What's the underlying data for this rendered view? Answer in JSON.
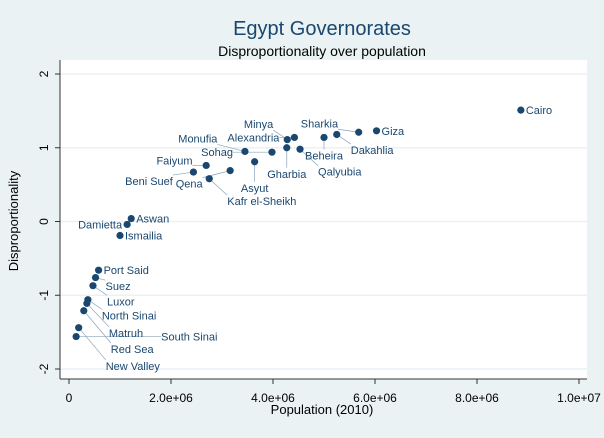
{
  "chart_data": {
    "type": "scatter",
    "title": "Egypt Governorates",
    "subtitle": "Disproportionality over population",
    "xlabel": "Population (2010)",
    "ylabel": "Disproportionality",
    "xlim": [
      0,
      10000000
    ],
    "ylim": [
      -2,
      2
    ],
    "xticks": [
      0,
      2000000,
      4000000,
      6000000,
      8000000,
      10000000
    ],
    "xtick_labels": [
      "0",
      "2.0e+06",
      "4.0e+06",
      "6.0e+06",
      "8.0e+06",
      "1.0e+07"
    ],
    "yticks": [
      2,
      1,
      0,
      -1,
      -2
    ],
    "ytick_labels": [
      "2",
      "1",
      "0",
      "-1",
      "-2"
    ],
    "grid": true,
    "marker_color": "#1a476f",
    "points": [
      {
        "label": "Cairo",
        "x": 8860000,
        "y": 1.51
      },
      {
        "label": "Giza",
        "x": 6030000,
        "y": 1.23
      },
      {
        "label": "Sharkia",
        "x": 5680000,
        "y": 1.21
      },
      {
        "label": "Dakahlia",
        "x": 5250000,
        "y": 1.18
      },
      {
        "label": "Beheira",
        "x": 5000000,
        "y": 1.14
      },
      {
        "label": "Alexandria",
        "x": 4420000,
        "y": 1.14
      },
      {
        "label": "Minya",
        "x": 4280000,
        "y": 1.11
      },
      {
        "label": "Qalyubia",
        "x": 4530000,
        "y": 0.98
      },
      {
        "label": "Gharbia",
        "x": 4270000,
        "y": 1.0
      },
      {
        "label": "Sohag",
        "x": 3980000,
        "y": 0.94
      },
      {
        "label": "Monufia",
        "x": 3450000,
        "y": 0.95
      },
      {
        "label": "Asyut",
        "x": 3640000,
        "y": 0.81
      },
      {
        "label": "Faiyum",
        "x": 2690000,
        "y": 0.76
      },
      {
        "label": "Qena",
        "x": 3160000,
        "y": 0.69
      },
      {
        "label": "Beni Suef",
        "x": 2440000,
        "y": 0.67
      },
      {
        "label": "Kafr el-Sheikh",
        "x": 2750000,
        "y": 0.58
      },
      {
        "label": "Aswan",
        "x": 1220000,
        "y": 0.04
      },
      {
        "label": "Damietta",
        "x": 1140000,
        "y": -0.04
      },
      {
        "label": "Ismailia",
        "x": 1000000,
        "y": -0.19
      },
      {
        "label": "Port Said",
        "x": 580000,
        "y": -0.66
      },
      {
        "label": "Suez",
        "x": 520000,
        "y": -0.76
      },
      {
        "label": "Luxor",
        "x": 470000,
        "y": -0.87
      },
      {
        "label": "North Sinai",
        "x": 370000,
        "y": -1.06
      },
      {
        "label": "Matruh",
        "x": 350000,
        "y": -1.11
      },
      {
        "label": "Red Sea",
        "x": 290000,
        "y": -1.21
      },
      {
        "label": "New Valley",
        "x": 190000,
        "y": -1.44
      },
      {
        "label": "South Sinai",
        "x": 140000,
        "y": -1.56
      }
    ]
  }
}
